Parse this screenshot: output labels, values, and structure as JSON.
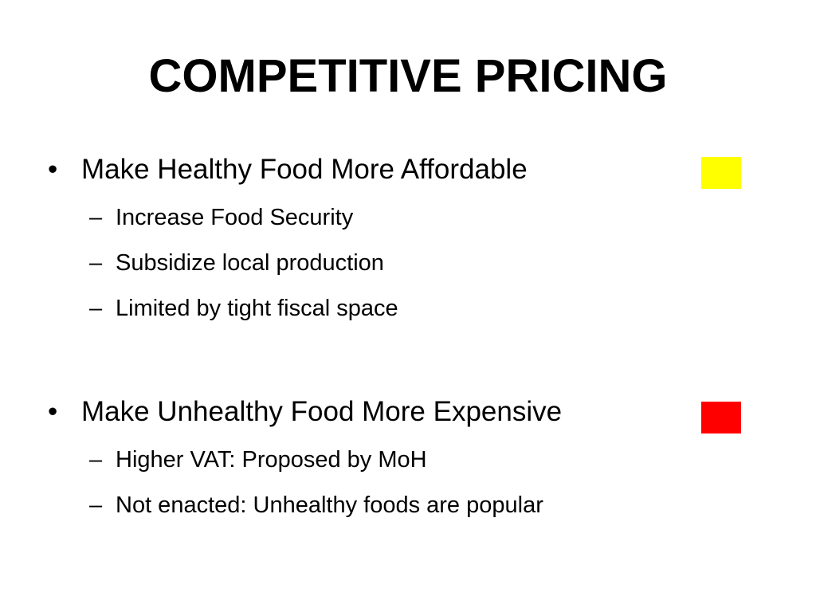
{
  "slide": {
    "title": "COMPETITIVE PRICING",
    "sections": [
      {
        "bullet": "•",
        "heading": "Make Healthy Food More Affordable",
        "color": "#ffff00",
        "items": [
          {
            "dash": "–",
            "text": "Increase Food Security"
          },
          {
            "dash": "–",
            "text": "Subsidize local production"
          },
          {
            "dash": "–",
            "text": "Limited by tight fiscal space"
          }
        ]
      },
      {
        "bullet": "•",
        "heading": "Make Unhealthy Food More Expensive",
        "color": "#ff0000",
        "items": [
          {
            "dash": "–",
            "text": "Higher VAT:  Proposed by MoH"
          },
          {
            "dash": "–",
            "text": "Not enacted:  Unhealthy foods are popular"
          }
        ]
      }
    ]
  }
}
